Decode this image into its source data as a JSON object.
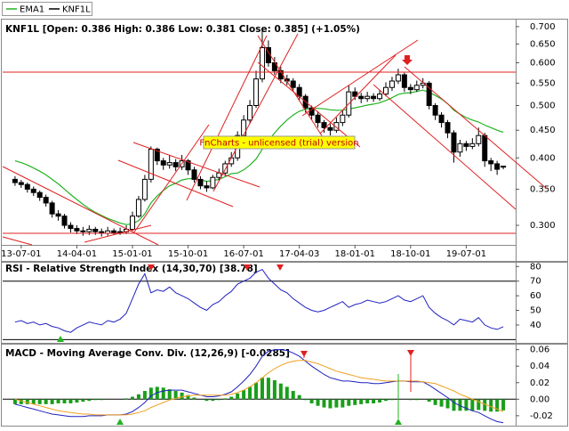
{
  "watermark": "FnCharts - unlicensed (trial) version",
  "chart_data": [
    {
      "type": "candlestick",
      "title": "KNF1L [Open: 0.386  High: 0.386  Low: 0.381  Close: 0.385] (+1.05%)",
      "ylog": true,
      "ylim": [
        0.276,
        0.705
      ],
      "yticks": [
        {
          "value": 0.3,
          "label": "0.300"
        },
        {
          "value": 0.35,
          "label": "0.350"
        },
        {
          "value": 0.4,
          "label": "0.400"
        },
        {
          "value": 0.45,
          "label": "0.450"
        },
        {
          "value": 0.5,
          "label": "0.500"
        },
        {
          "value": 0.55,
          "label": "0.550"
        },
        {
          "value": 0.6,
          "label": "0.600"
        },
        {
          "value": 0.65,
          "label": "0.650"
        },
        {
          "value": 0.7,
          "label": "0.700"
        }
      ],
      "xlim": [
        -2,
        81
      ],
      "xticks": [
        {
          "value": 1,
          "label": "13-07-01"
        },
        {
          "value": 10,
          "label": "14-04-01"
        },
        {
          "value": 19,
          "label": "15-01-01"
        },
        {
          "value": 28,
          "label": "15-10-01"
        },
        {
          "value": 37,
          "label": "16-07-01"
        },
        {
          "value": 46,
          "label": "17-04-03"
        },
        {
          "value": 55,
          "label": "18-01-01"
        },
        {
          "value": 64,
          "label": "18-10-01"
        },
        {
          "value": 73,
          "label": "19-07-01"
        }
      ],
      "series": [
        {
          "name": "EMA1",
          "color": "#22b322",
          "values": [
            0.395,
            0.392,
            0.388,
            0.383,
            0.378,
            0.372,
            0.365,
            0.358,
            0.35,
            0.342,
            0.335,
            0.328,
            0.322,
            0.317,
            0.313,
            0.309,
            0.306,
            0.303,
            0.301,
            0.302,
            0.306,
            0.315,
            0.33,
            0.34,
            0.348,
            0.355,
            0.359,
            0.364,
            0.366,
            0.366,
            0.364,
            0.362,
            0.363,
            0.365,
            0.369,
            0.374,
            0.375,
            0.38,
            0.388,
            0.398,
            0.415,
            0.43,
            0.445,
            0.458,
            0.47,
            0.48,
            0.488,
            0.492,
            0.494,
            0.494,
            0.493,
            0.491,
            0.49,
            0.49,
            0.493,
            0.495,
            0.498,
            0.501,
            0.503,
            0.506,
            0.511,
            0.517,
            0.524,
            0.527,
            0.528,
            0.531,
            0.534,
            0.529,
            0.522,
            0.514,
            0.504,
            0.49,
            0.482,
            0.475,
            0.47,
            0.466,
            0.46,
            0.455,
            0.45,
            0.446
          ]
        },
        {
          "name": "KNF1L",
          "color": "#000000",
          "open": [
            0.365,
            0.36,
            0.357,
            0.35,
            0.345,
            0.338,
            0.33,
            0.315,
            0.312,
            0.3,
            0.296,
            0.293,
            0.292,
            0.295,
            0.292,
            0.29,
            0.293,
            0.291,
            0.292,
            0.295,
            0.312,
            0.335,
            0.365,
            0.415,
            0.395,
            0.388,
            0.392,
            0.385,
            0.395,
            0.38,
            0.365,
            0.355,
            0.352,
            0.368,
            0.375,
            0.39,
            0.4,
            0.44,
            0.47,
            0.5,
            0.56,
            0.64,
            0.6,
            0.58,
            0.56,
            0.555,
            0.54,
            0.52,
            0.495,
            0.48,
            0.465,
            0.455,
            0.45,
            0.465,
            0.48,
            0.53,
            0.52,
            0.515,
            0.52,
            0.515,
            0.525,
            0.54,
            0.555,
            0.57,
            0.54,
            0.535,
            0.545,
            0.55,
            0.5,
            0.48,
            0.465,
            0.445,
            0.41,
            0.425,
            0.42,
            0.425,
            0.44,
            0.395,
            0.39,
            0.386
          ],
          "high": [
            0.37,
            0.364,
            0.36,
            0.354,
            0.348,
            0.342,
            0.333,
            0.32,
            0.315,
            0.304,
            0.3,
            0.298,
            0.3,
            0.298,
            0.296,
            0.298,
            0.296,
            0.297,
            0.3,
            0.318,
            0.34,
            0.372,
            0.42,
            0.418,
            0.4,
            0.405,
            0.398,
            0.405,
            0.398,
            0.385,
            0.37,
            0.362,
            0.372,
            0.382,
            0.395,
            0.41,
            0.448,
            0.48,
            0.512,
            0.58,
            0.69,
            0.66,
            0.615,
            0.59,
            0.57,
            0.562,
            0.548,
            0.525,
            0.5,
            0.488,
            0.47,
            0.462,
            0.475,
            0.49,
            0.545,
            0.54,
            0.528,
            0.53,
            0.527,
            0.535,
            0.552,
            0.565,
            0.585,
            0.575,
            0.548,
            0.556,
            0.562,
            0.555,
            0.505,
            0.486,
            0.47,
            0.45,
            0.432,
            0.43,
            0.435,
            0.455,
            0.445,
            0.4,
            0.395,
            0.386
          ],
          "low": [
            0.355,
            0.352,
            0.345,
            0.34,
            0.333,
            0.325,
            0.31,
            0.306,
            0.296,
            0.291,
            0.289,
            0.287,
            0.288,
            0.288,
            0.286,
            0.287,
            0.288,
            0.288,
            0.289,
            0.293,
            0.31,
            0.332,
            0.36,
            0.388,
            0.38,
            0.382,
            0.378,
            0.38,
            0.372,
            0.36,
            0.35,
            0.346,
            0.35,
            0.363,
            0.37,
            0.385,
            0.395,
            0.432,
            0.462,
            0.495,
            0.552,
            0.59,
            0.57,
            0.55,
            0.545,
            0.53,
            0.51,
            0.485,
            0.47,
            0.455,
            0.445,
            0.44,
            0.445,
            0.458,
            0.475,
            0.512,
            0.505,
            0.508,
            0.508,
            0.51,
            0.52,
            0.532,
            0.548,
            0.53,
            0.525,
            0.53,
            0.538,
            0.492,
            0.47,
            0.455,
            0.435,
            0.392,
            0.402,
            0.412,
            0.415,
            0.42,
            0.385,
            0.378,
            0.372,
            0.381
          ],
          "close": [
            0.36,
            0.357,
            0.35,
            0.345,
            0.338,
            0.33,
            0.315,
            0.312,
            0.3,
            0.296,
            0.293,
            0.292,
            0.295,
            0.292,
            0.29,
            0.293,
            0.291,
            0.292,
            0.295,
            0.312,
            0.335,
            0.365,
            0.415,
            0.395,
            0.388,
            0.392,
            0.385,
            0.395,
            0.38,
            0.365,
            0.355,
            0.352,
            0.368,
            0.375,
            0.39,
            0.4,
            0.44,
            0.47,
            0.5,
            0.56,
            0.64,
            0.6,
            0.58,
            0.56,
            0.555,
            0.54,
            0.52,
            0.495,
            0.48,
            0.465,
            0.455,
            0.45,
            0.465,
            0.48,
            0.53,
            0.52,
            0.515,
            0.52,
            0.515,
            0.525,
            0.54,
            0.555,
            0.57,
            0.54,
            0.535,
            0.545,
            0.55,
            0.5,
            0.48,
            0.465,
            0.445,
            0.41,
            0.425,
            0.42,
            0.425,
            0.44,
            0.395,
            0.39,
            0.381,
            0.385
          ]
        }
      ]
    },
    {
      "type": "line",
      "title": "RSI - Relative Strength Index (14,30,70) [38.78]",
      "ylim": [
        29,
        82
      ],
      "yticks": [
        80,
        70,
        60,
        50,
        40
      ],
      "levels": [
        30,
        70
      ],
      "series": [
        {
          "color": "#2020c0",
          "values": [
            42,
            43,
            41,
            42,
            40,
            41,
            39,
            38,
            36,
            35,
            38,
            40,
            42,
            41,
            40,
            43,
            42,
            44,
            48,
            58,
            68,
            75,
            62,
            64,
            63,
            66,
            62,
            60,
            58,
            55,
            52,
            50,
            54,
            56,
            60,
            63,
            68,
            70,
            72,
            76,
            78,
            72,
            68,
            64,
            62,
            58,
            55,
            52,
            50,
            49,
            50,
            52,
            54,
            56,
            52,
            54,
            55,
            57,
            56,
            55,
            56,
            58,
            60,
            57,
            56,
            58,
            60,
            52,
            48,
            45,
            43,
            40,
            44,
            43,
            42,
            45,
            40,
            38,
            37,
            38.78
          ]
        }
      ]
    },
    {
      "type": "macd",
      "title": "MACD - Moving Average Conv. Div. (12,26,9) [-0.0285]",
      "ylim": [
        -0.032,
        0.065
      ],
      "yticks": [
        0.06,
        0.04,
        0.02,
        {
          "value": 0,
          "label": "0.00"
        },
        -0.02
      ],
      "series": [
        {
          "type": "bar",
          "color": "#1a9e1a",
          "values": [
            -0.006,
            -0.006,
            -0.006,
            -0.006,
            -0.006,
            -0.006,
            -0.006,
            -0.005,
            -0.005,
            -0.005,
            -0.004,
            -0.003,
            -0.002,
            -0.001,
            -0.001,
            0.0,
            0.0,
            0.0,
            0.001,
            0.003,
            0.006,
            0.01,
            0.014,
            0.015,
            0.014,
            0.012,
            0.01,
            0.008,
            0.005,
            0.002,
            0.0,
            -0.002,
            -0.002,
            -0.001,
            0.001,
            0.003,
            0.007,
            0.011,
            0.015,
            0.02,
            0.026,
            0.026,
            0.023,
            0.019,
            0.015,
            0.01,
            0.005,
            -0.001,
            -0.005,
            -0.008,
            -0.01,
            -0.011,
            -0.01,
            -0.01,
            -0.008,
            -0.007,
            -0.006,
            -0.005,
            -0.005,
            -0.004,
            -0.002,
            -0.001,
            0.0,
            0.0,
            -0.001,
            -0.001,
            0.0,
            -0.003,
            -0.007,
            -0.009,
            -0.011,
            -0.014,
            -0.014,
            -0.014,
            -0.014,
            -0.013,
            -0.014,
            -0.015,
            -0.015,
            -0.0135
          ]
        },
        {
          "type": "line",
          "color": "#2020c0",
          "values": [
            -0.006,
            -0.008,
            -0.01,
            -0.012,
            -0.014,
            -0.016,
            -0.018,
            -0.019,
            -0.02,
            -0.021,
            -0.021,
            -0.021,
            -0.02,
            -0.02,
            -0.02,
            -0.019,
            -0.019,
            -0.019,
            -0.018,
            -0.015,
            -0.01,
            -0.004,
            0.004,
            0.008,
            0.01,
            0.011,
            0.011,
            0.011,
            0.009,
            0.007,
            0.005,
            0.003,
            0.003,
            0.004,
            0.006,
            0.009,
            0.015,
            0.022,
            0.03,
            0.04,
            0.052,
            0.058,
            0.06,
            0.06,
            0.059,
            0.056,
            0.052,
            0.046,
            0.04,
            0.035,
            0.03,
            0.026,
            0.024,
            0.022,
            0.022,
            0.021,
            0.02,
            0.02,
            0.019,
            0.019,
            0.02,
            0.021,
            0.022,
            0.022,
            0.021,
            0.021,
            0.021,
            0.017,
            0.012,
            0.007,
            0.002,
            -0.004,
            -0.008,
            -0.011,
            -0.014,
            -0.016,
            -0.02,
            -0.024,
            -0.027,
            -0.0285
          ]
        },
        {
          "type": "line",
          "color": "#f0a020",
          "values": [
            0.0,
            -0.002,
            -0.004,
            -0.006,
            -0.008,
            -0.01,
            -0.012,
            -0.014,
            -0.015,
            -0.016,
            -0.017,
            -0.018,
            -0.018,
            -0.019,
            -0.019,
            -0.019,
            -0.019,
            -0.019,
            -0.019,
            -0.018,
            -0.016,
            -0.014,
            -0.01,
            -0.007,
            -0.004,
            -0.001,
            0.001,
            0.003,
            0.004,
            0.005,
            0.005,
            0.005,
            0.005,
            0.005,
            0.005,
            0.006,
            0.008,
            0.011,
            0.015,
            0.02,
            0.026,
            0.032,
            0.037,
            0.041,
            0.044,
            0.046,
            0.047,
            0.047,
            0.045,
            0.043,
            0.04,
            0.037,
            0.034,
            0.032,
            0.03,
            0.028,
            0.026,
            0.025,
            0.024,
            0.023,
            0.022,
            0.022,
            0.022,
            0.022,
            0.022,
            0.022,
            0.021,
            0.02,
            0.019,
            0.016,
            0.013,
            0.01,
            0.006,
            0.003,
            0.0,
            -0.003,
            -0.006,
            -0.009,
            -0.012,
            -0.015
          ]
        }
      ]
    }
  ]
}
